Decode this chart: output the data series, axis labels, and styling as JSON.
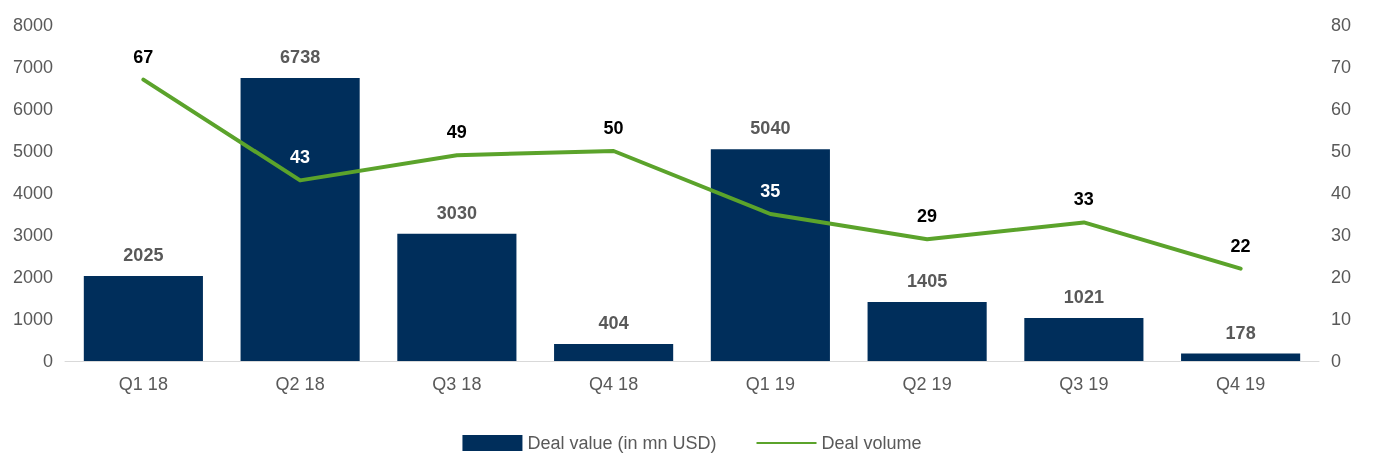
{
  "chart_data": {
    "type": "bar",
    "categories": [
      "Q1 18",
      "Q2 18",
      "Q3 18",
      "Q4 18",
      "Q1 19",
      "Q2 19",
      "Q3 19",
      "Q4 19"
    ],
    "series": [
      {
        "name": "Deal value (in mn USD)",
        "color": "#002e5b",
        "values": [
          2025,
          6738,
          3030,
          404,
          5040,
          1405,
          1021,
          178
        ]
      },
      {
        "name": "Deal volume",
        "type": "line",
        "axis": "y2",
        "color": "#5ba32b",
        "values": [
          67,
          43,
          49,
          50,
          35,
          29,
          33,
          22
        ]
      }
    ],
    "ylim": [
      0,
      8000
    ],
    "yticks": [
      0,
      1000,
      2000,
      3000,
      4000,
      5000,
      6000,
      7000,
      8000
    ],
    "y2lim": [
      0,
      80
    ],
    "y2ticks": [
      0,
      10,
      20,
      30,
      40,
      50,
      60,
      70,
      80
    ],
    "data_labels": true,
    "grid": false,
    "legend": "bottom",
    "marker": "none",
    "line_style": "solid"
  }
}
